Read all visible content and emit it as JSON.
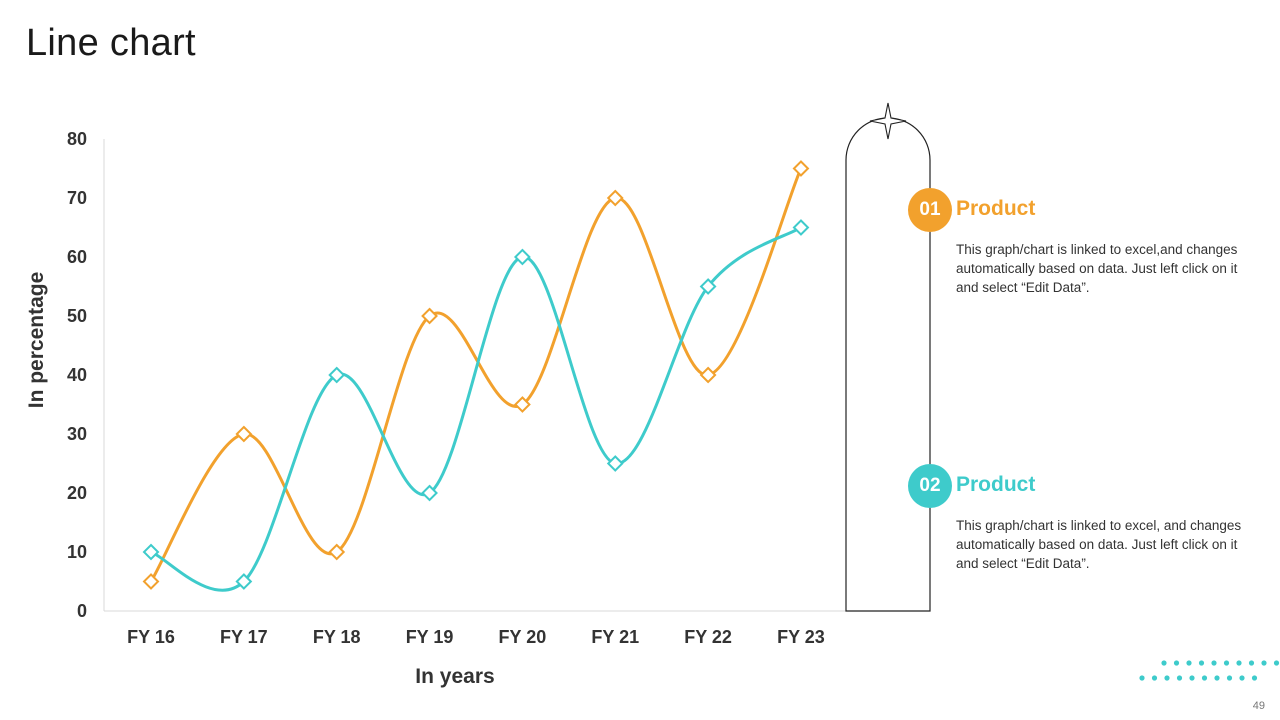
{
  "slide": {
    "title": "Line chart",
    "page_number": "49"
  },
  "colors": {
    "series1": "#F2A12D",
    "series2": "#3ECBCB",
    "axis": "#D9D9D9",
    "decor_outline": "#222222",
    "dots": "#3ECBCB"
  },
  "legend": [
    {
      "number": "01",
      "label": "Product",
      "color": "#F2A12D",
      "description": "This graph/chart is linked to excel,and changes automatically based on data. Just left click on it and select “Edit Data”."
    },
    {
      "number": "02",
      "label": "Product",
      "color": "#3ECBCB",
      "description": "This graph/chart is linked to excel, and changes automatically based on data. Just left click on it and select “Edit Data”."
    }
  ],
  "decor": {
    "icons": [
      "sparkle-star-icon",
      "dot-grid-icon"
    ]
  },
  "chart_data": {
    "type": "line",
    "smooth": true,
    "marker": "diamond",
    "categories": [
      "FY 16",
      "FY 17",
      "FY 18",
      "FY 19",
      "FY 20",
      "FY 21",
      "FY 22",
      "FY 23"
    ],
    "series": [
      {
        "name": "Product",
        "color": "#F2A12D",
        "values": [
          5,
          30,
          10,
          50,
          35,
          70,
          40,
          75
        ]
      },
      {
        "name": "Product",
        "color": "#3ECBCB",
        "values": [
          10,
          5,
          40,
          20,
          60,
          25,
          55,
          65
        ]
      }
    ],
    "title": "",
    "xlabel": "In years",
    "ylabel": "In percentage",
    "ylim": [
      0,
      80
    ],
    "yticks": [
      0,
      10,
      20,
      30,
      40,
      50,
      60,
      70,
      80
    ],
    "grid": false,
    "legend_placement": "right"
  }
}
